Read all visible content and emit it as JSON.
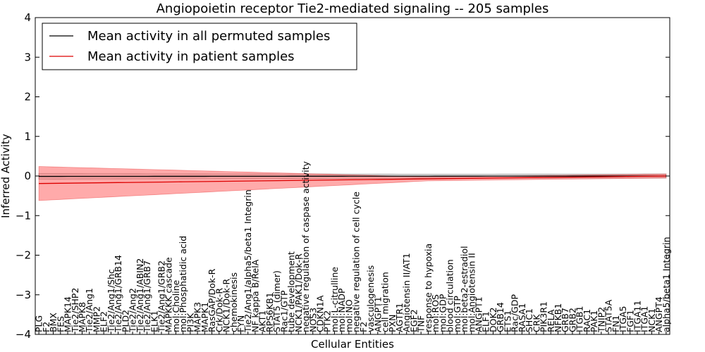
{
  "chart_data": {
    "type": "line",
    "title": "Angiopoietin receptor Tie2-mediated signaling -- 205 samples",
    "xlabel": "Cellular Entities",
    "ylabel": "Inferred Activity",
    "ylim": [
      -4,
      4
    ],
    "yticks": [
      -4,
      -3,
      -2,
      -1,
      0,
      1,
      2,
      3,
      4
    ],
    "xlim": [
      -0.5,
      87.5
    ],
    "grid": false,
    "legend_position": "top-left",
    "categories": [
      "PLG",
      "F2",
      "BMX",
      "FES",
      "MAPK14",
      "Tie2/SHP2",
      "MAPK8",
      "Tie2/Ang1",
      "MMP2",
      "ELF2",
      "Tie2/Ang1/Shc",
      "Tie2/Ang1/GRB14",
      "PLD2",
      "Tie2/Ang2",
      "Tie2/Ang1/ABIN2",
      "Tie2/Ang1/GRB7",
      "ELK1",
      "Tie2/Ang1/GRB2",
      "MAPKKK cascade",
      "mol:Choline",
      "mol:Phosphatidic acid",
      "PI3K",
      "MAPK3",
      "MAPK1",
      "RasGAP/Dok-R",
      "Crk/Dok-R",
      "NCK1/Dok-R",
      "chemokinesis",
      "FYN",
      "Tie2/Ang1/alpha5/beta1 Integrin",
      "NF kappa B/RelA",
      "AKT1",
      "RPS6KB1",
      "STAT5 (dimer)",
      "Rac1/GTP",
      "tube development",
      "NCK1/PAK1/Dok-R",
      "negative regulation of caspase activity",
      "NOS3",
      "CDKN1A",
      "PTK2",
      "mol:L-citrulline",
      "mol:NADP",
      "mol:NO",
      "negative regulation of cell cycle",
      "F2",
      "vasculogenesis",
      "ANGPT1",
      "cell migration",
      "PXN",
      "AGTR1",
      "Angiotensin II/AT1",
      "EGF2",
      "TNF",
      "response to hypoxia",
      "mol:ROS",
      "mol:GDP",
      "blood circulation",
      "mol:GTP",
      "mol:beta2-estradiol",
      "mol:Angiotensin II",
      "ANGPT1",
      "ELF1",
      "DOK2",
      "GRB14",
      "ETS1",
      "Rac/GDP",
      "RASA1",
      "SHC1",
      "CRK",
      "PIK3R1",
      "RELA",
      "NFKB1",
      "GRB7",
      "GRB2",
      "ITGB1",
      "RAC1",
      "PAK1",
      "TNIP2",
      "STAT5A",
      "FN1",
      "ITGA5",
      "FGF1",
      "ITGA11",
      "ITGA1",
      "NCK1",
      "ANGPT4",
      "alpha5/beta1 Integrin"
    ],
    "series": [
      {
        "name": "Mean activity in all permuted samples",
        "color": "#000000",
        "band_color": "#bbbbbb",
        "mean_start": -0.01,
        "mean_end": 0.0,
        "band_start": 0.07,
        "band_end": 0.05
      },
      {
        "name": "Mean activity in patient samples",
        "color": "#dd0000",
        "band_color": "#ff5555",
        "mean_start": -0.19,
        "mean_end": 0.0,
        "band_start": 0.43,
        "band_end": 0.05
      }
    ],
    "legend": [
      "Mean activity in all permuted samples",
      "Mean activity in patient samples"
    ]
  }
}
